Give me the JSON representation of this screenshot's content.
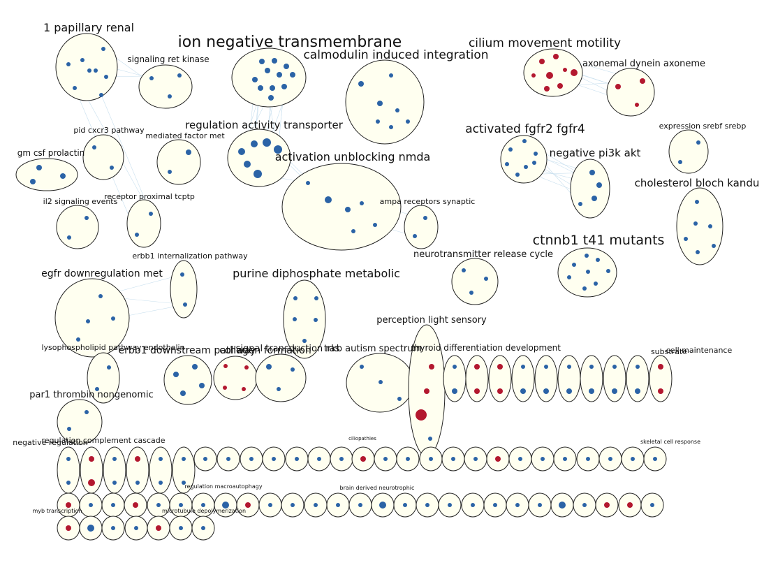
{
  "network": {
    "labels": {
      "l1": "1 papillary renal",
      "l2": "ion negative transmembrane",
      "l3": "calmodulin induced integration",
      "l4": "cilium movement motility",
      "l5": "axonemal dynein axoneme",
      "l6": "signaling ret kinase",
      "l7": "regulation activity transporter",
      "l8": "activated fgfr2 fgfr4",
      "l9": "expression srebf srebp",
      "l10": "pid cxcr3 pathway",
      "l11": "mediated factor met",
      "l12": "activation unblocking nmda",
      "l13": "negative pi3k akt",
      "l14": "gm csf prolactin",
      "l15": "cholesterol bloch kandu",
      "l16": "receptor proximal tcptp",
      "l17": "il2 signaling events",
      "l18": "ampa receptors synaptic",
      "l19": "ctnnb1 t41 mutants",
      "l20": "erbb1 internalization pathway",
      "l21": "neurotransmitter release cycle",
      "l22": "egfr downregulation met",
      "l23": "purine diphosphate metabolic",
      "l24": "perception light sensory",
      "l25": "lysophospholipid pathway endothelin",
      "l26": "erbb1 downstream pathway",
      "l27": "collagen formation",
      "l28": "signal transduction ras",
      "l29": "trkb autism spectrum",
      "l30": "thyroid differentiation development",
      "l31": "cell maintenance",
      "l32": "substrate",
      "l33": "par1 thrombin nongenomic",
      "l34": "regulation complement cascade",
      "l35": "negative regulation",
      "l36": "regulation macroautophagy",
      "l37": "ciliopathies",
      "l38": "brain derived neurotrophic",
      "l39": "skeletal cell response",
      "l40": "microtubule depolymerization",
      "l41": "myb transcription"
    }
  }
}
